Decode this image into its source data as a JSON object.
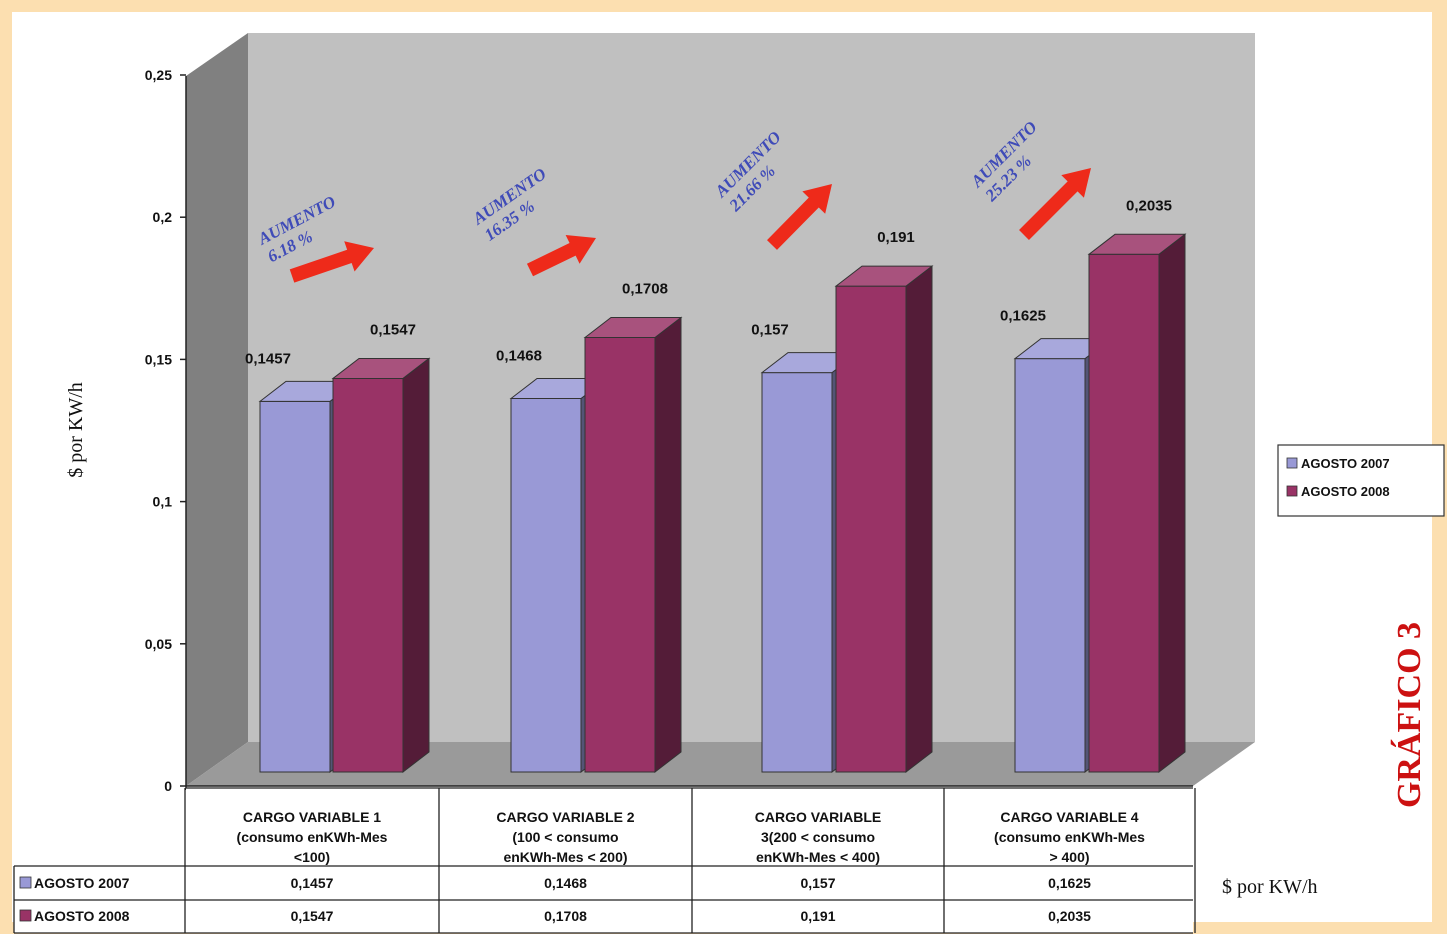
{
  "chart_data": {
    "type": "bar",
    "categories": [
      "CARGO VARIABLE 1 (consumo enKWh-Mes <100)",
      "CARGO VARIABLE 2 (100 < consumo enKWh-Mes < 200)",
      "CARGO VARIABLE 3(200 < consumo enKWh-Mes < 400)",
      "CARGO VARIABLE 4 (consumo enKWh-Mes > 400)"
    ],
    "category_lines": [
      [
        "CARGO VARIABLE 1",
        "(consumo enKWh-Mes",
        "<100)"
      ],
      [
        "CARGO VARIABLE 2",
        "(100 < consumo",
        "enKWh-Mes < 200)"
      ],
      [
        "CARGO VARIABLE",
        "3(200 < consumo",
        "enKWh-Mes < 400)"
      ],
      [
        "CARGO VARIABLE 4",
        "(consumo enKWh-Mes",
        "> 400)"
      ]
    ],
    "series": [
      {
        "name": "AGOSTO 2007",
        "values": [
          0.1457,
          0.1468,
          0.157,
          0.1625
        ],
        "labels": [
          "0,1457",
          "0,1468",
          "0,157",
          "0,1625"
        ],
        "color": "#9999d6"
      },
      {
        "name": "AGOSTO 2008",
        "values": [
          0.1547,
          0.1708,
          0.191,
          0.2035
        ],
        "labels": [
          "0,1547",
          "0,1708",
          "0,191",
          "0,2035"
        ],
        "color": "#993366"
      }
    ],
    "ylim": [
      0,
      0.25
    ],
    "ytick_values": [
      0,
      0.05,
      0.1,
      0.15,
      0.2,
      0.25
    ],
    "ytick_labels": [
      "0",
      "0,05",
      "0,1",
      "0,15",
      "0,2",
      "0,25"
    ],
    "ylabel": "$ por KW/h",
    "xlabel": "",
    "legend_position": "right",
    "annotations": [
      {
        "title": "AUMENTO",
        "pct": "6.18 %"
      },
      {
        "title": "AUMENTO",
        "pct": "16.35 %"
      },
      {
        "title": "AUMENTO",
        "pct": "21.66 %"
      },
      {
        "title": "AUMENTO",
        "pct": "25.23 %"
      }
    ],
    "table_unit_label": "$ por KW/h",
    "side_title": "GRÁFICO 3",
    "colors": {
      "wall": "#c0c0c0",
      "floor": "#9a9a9a",
      "side_wall": "#808080",
      "arrow": "#ee2a1a",
      "annotation_text": "#3f4bb8",
      "side_title": "#cc1111"
    }
  }
}
